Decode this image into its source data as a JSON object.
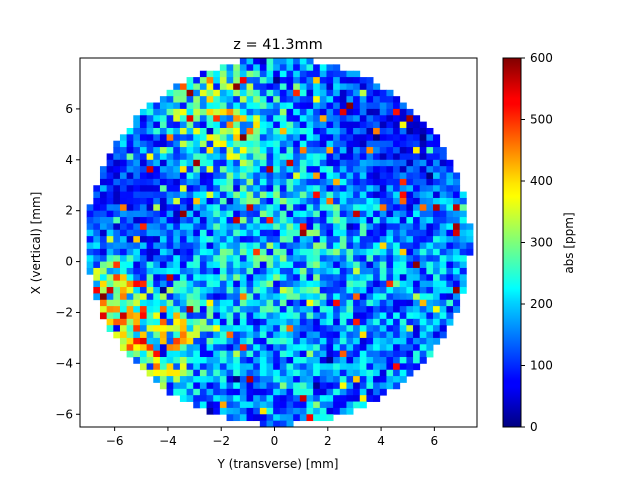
{
  "chart_data": {
    "type": "heatmap",
    "title": "z = 41.3mm",
    "xlabel": "Y (transverse) [mm]",
    "ylabel": "X (vertical) [mm]",
    "xlim": [
      -7.3,
      7.6
    ],
    "ylim": [
      -6.5,
      8.0
    ],
    "xticks": [
      -6,
      -4,
      -2,
      0,
      2,
      4,
      6
    ],
    "yticks": [
      -6,
      -4,
      -2,
      0,
      2,
      4,
      6
    ],
    "xtick_labels": [
      "−6",
      "−4",
      "−2",
      "0",
      "2",
      "4",
      "6"
    ],
    "ytick_labels": [
      "−6",
      "−4",
      "−2",
      "0",
      "2",
      "4",
      "6"
    ],
    "grid": false,
    "cell_size_mm": 0.25,
    "disk_center": [
      0.15,
      0.8
    ],
    "disk_radius": 7.2,
    "colormap": "jet",
    "colorbar": {
      "label": "abs [ppm]",
      "min": 0,
      "max": 600,
      "ticks": [
        0,
        100,
        200,
        300,
        400,
        500,
        600
      ],
      "tick_labels": [
        "0",
        "100",
        "200",
        "300",
        "400",
        "500",
        "600"
      ]
    },
    "value_pattern": {
      "seed": 7,
      "note_regions": [
        {
          "name": "high left rim",
          "center": [
            -6.3,
            -1.6
          ],
          "radius": 1.1,
          "mean": 500
        },
        {
          "name": "yellow-red lower left",
          "center": [
            -4.5,
            -3.0
          ],
          "radius": 1.3,
          "mean": 420
        },
        {
          "name": "warm upper center",
          "center": [
            -2.0,
            5.5
          ],
          "radius": 1.5,
          "mean": 330
        },
        {
          "name": "mixed center",
          "center": [
            0.5,
            1.0
          ],
          "radius": 2.5,
          "mean": 220
        },
        {
          "name": "deep blue right",
          "center": [
            4.5,
            5.0
          ],
          "radius": 2.0,
          "mean": 60
        },
        {
          "name": "deep blue left",
          "center": [
            -5.0,
            2.5
          ],
          "radius": 1.6,
          "mean": 70
        }
      ],
      "base_mean": 150
    }
  },
  "colors": {
    "axes": "#000000",
    "background": "#ffffff"
  }
}
